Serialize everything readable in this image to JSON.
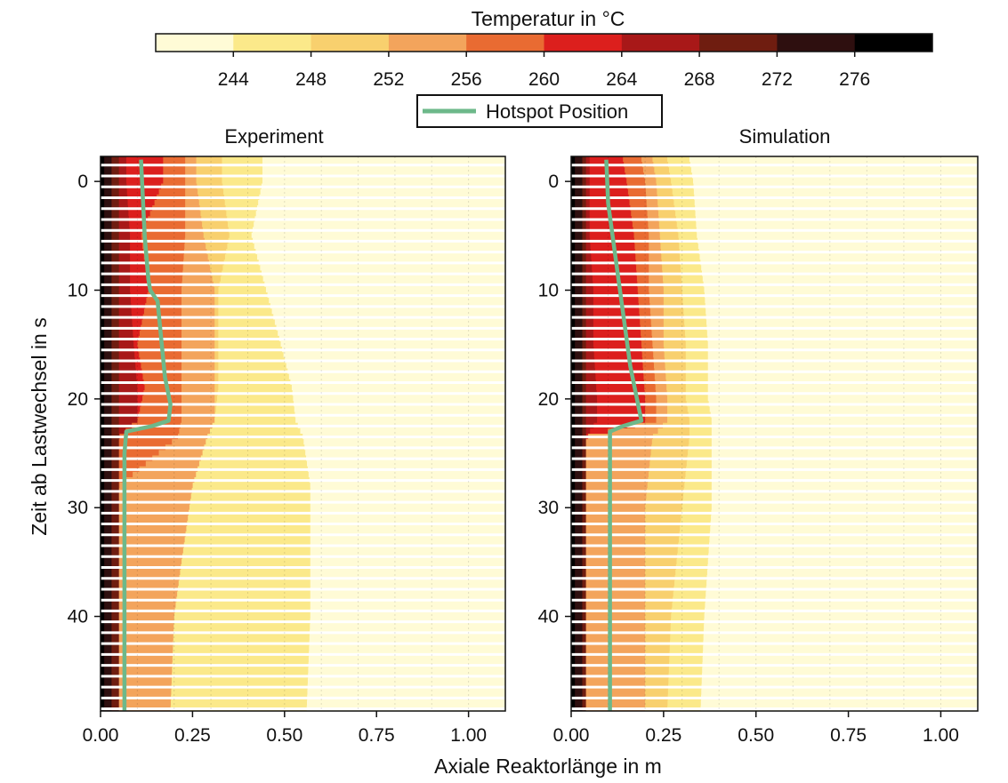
{
  "figure": {
    "colorbar_title": "Temperatur  in °C",
    "legend_label": "Hotspot Position",
    "xlabel": "Axiale Reaktorlänge in m",
    "ylabel": "Zeit ab Lastwechsel in s"
  },
  "colors": {
    "hotspot_line": "#6db88a",
    "stripe": "#ffffff"
  },
  "chart_data": [
    {
      "type": "heatmap",
      "title": "Experiment",
      "x_range": [
        0.0,
        1.1
      ],
      "y_range": [
        -2.3,
        48.7
      ],
      "y_inverted": true,
      "x_ticks": [
        0.0,
        0.25,
        0.5,
        0.75,
        1.0
      ],
      "x_tick_labels": [
        "0.00",
        "0.25",
        "0.50",
        "0.75",
        "1.00"
      ],
      "y_ticks": [
        0,
        10,
        20,
        30,
        40
      ],
      "y_tick_labels": [
        "0",
        "10",
        "20",
        "30",
        "40"
      ],
      "contour_profile": [
        {
          "t": -2,
          "x": [
            0.01,
            0.03,
            0.05,
            0.07,
            0.17,
            0.23,
            0.26,
            0.33,
            0.44,
            0.65,
            1.1
          ]
        },
        {
          "t": 0,
          "x": [
            0.01,
            0.03,
            0.05,
            0.07,
            0.17,
            0.23,
            0.26,
            0.33,
            0.44,
            0.66,
            1.1
          ]
        },
        {
          "t": 5,
          "x": [
            0.01,
            0.03,
            0.05,
            0.08,
            0.11,
            0.23,
            0.28,
            0.35,
            0.41,
            0.62,
            1.1
          ]
        },
        {
          "t": 10,
          "x": [
            0.01,
            0.03,
            0.05,
            0.08,
            0.13,
            0.22,
            0.31,
            0.32,
            0.45,
            0.68,
            1.1
          ]
        },
        {
          "t": 15,
          "x": [
            0.01,
            0.03,
            0.05,
            0.09,
            0.1,
            0.22,
            0.31,
            0.32,
            0.49,
            0.74,
            1.1
          ]
        },
        {
          "t": 19,
          "x": [
            0.01,
            0.03,
            0.05,
            0.1,
            0.12,
            0.22,
            0.31,
            0.32,
            0.52,
            0.77,
            1.1
          ]
        },
        {
          "t": 22,
          "x": [
            0.01,
            0.03,
            0.05,
            0.1,
            0.1,
            0.22,
            0.31,
            0.31,
            0.53,
            0.78,
            1.1
          ]
        },
        {
          "t": 23.5,
          "x": [
            0.01,
            0.03,
            0.05,
            0.05,
            0.05,
            0.21,
            0.29,
            0.29,
            0.55,
            0.78,
            1.1
          ]
        },
        {
          "t": 28,
          "x": [
            0.01,
            0.03,
            0.05,
            0.05,
            0.05,
            0.05,
            0.25,
            0.25,
            0.57,
            0.79,
            1.1
          ]
        },
        {
          "t": 35,
          "x": [
            0.01,
            0.03,
            0.05,
            0.05,
            0.05,
            0.05,
            0.22,
            0.22,
            0.57,
            0.8,
            1.1
          ]
        },
        {
          "t": 40,
          "x": [
            0.01,
            0.03,
            0.05,
            0.05,
            0.05,
            0.05,
            0.2,
            0.2,
            0.57,
            0.79,
            1.1
          ]
        },
        {
          "t": 48.7,
          "x": [
            0.01,
            0.03,
            0.05,
            0.05,
            0.05,
            0.05,
            0.19,
            0.19,
            0.56,
            0.78,
            1.1
          ]
        }
      ],
      "hotspot_position": [
        {
          "t": -2,
          "x": 0.11
        },
        {
          "t": 5,
          "x": 0.12
        },
        {
          "t": 9,
          "x": 0.13
        },
        {
          "t": 10,
          "x": 0.135
        },
        {
          "t": 11,
          "x": 0.155
        },
        {
          "t": 18,
          "x": 0.175
        },
        {
          "t": 20.5,
          "x": 0.19
        },
        {
          "t": 22,
          "x": 0.185
        },
        {
          "t": 22.5,
          "x": 0.14
        },
        {
          "t": 23,
          "x": 0.07
        },
        {
          "t": 25,
          "x": 0.065
        },
        {
          "t": 48.7,
          "x": 0.065
        }
      ]
    },
    {
      "type": "heatmap",
      "title": "Simulation",
      "x_range": [
        0.0,
        1.1
      ],
      "y_range": [
        -2.3,
        48.7
      ],
      "y_inverted": true,
      "x_ticks": [
        0.0,
        0.25,
        0.5,
        0.75,
        1.0
      ],
      "x_tick_labels": [
        "0.00",
        "0.25",
        "0.50",
        "0.75",
        "1.00"
      ],
      "y_ticks": [
        0,
        10,
        20,
        30,
        40
      ],
      "y_tick_labels": [
        "0",
        "10",
        "20",
        "30",
        "40"
      ],
      "contour_profile": [
        {
          "t": -2,
          "x": [
            0.01,
            0.03,
            0.04,
            0.05,
            0.14,
            0.19,
            0.22,
            0.26,
            0.32,
            0.48,
            1.1
          ]
        },
        {
          "t": 0,
          "x": [
            0.01,
            0.03,
            0.04,
            0.05,
            0.15,
            0.2,
            0.23,
            0.27,
            0.33,
            0.49,
            1.1
          ]
        },
        {
          "t": 5,
          "x": [
            0.01,
            0.03,
            0.04,
            0.05,
            0.17,
            0.21,
            0.24,
            0.29,
            0.34,
            0.5,
            1.1
          ]
        },
        {
          "t": 10,
          "x": [
            0.01,
            0.03,
            0.04,
            0.06,
            0.18,
            0.21,
            0.25,
            0.3,
            0.36,
            0.5,
            1.1
          ]
        },
        {
          "t": 15,
          "x": [
            0.01,
            0.03,
            0.04,
            0.06,
            0.19,
            0.22,
            0.25,
            0.31,
            0.37,
            0.51,
            1.1
          ]
        },
        {
          "t": 20,
          "x": [
            0.01,
            0.03,
            0.04,
            0.07,
            0.2,
            0.23,
            0.26,
            0.31,
            0.37,
            0.52,
            1.1
          ]
        },
        {
          "t": 22,
          "x": [
            0.01,
            0.03,
            0.04,
            0.07,
            0.2,
            0.23,
            0.26,
            0.32,
            0.38,
            0.52,
            1.1
          ]
        },
        {
          "t": 23.5,
          "x": [
            0.01,
            0.03,
            0.04,
            0.04,
            0.04,
            0.04,
            0.22,
            0.32,
            0.38,
            0.53,
            1.1
          ]
        },
        {
          "t": 30,
          "x": [
            0.01,
            0.03,
            0.04,
            0.04,
            0.04,
            0.04,
            0.2,
            0.3,
            0.38,
            0.54,
            1.1
          ]
        },
        {
          "t": 40,
          "x": [
            0.01,
            0.03,
            0.04,
            0.04,
            0.04,
            0.04,
            0.2,
            0.27,
            0.36,
            0.55,
            1.1
          ]
        },
        {
          "t": 48.7,
          "x": [
            0.01,
            0.03,
            0.04,
            0.04,
            0.04,
            0.04,
            0.2,
            0.26,
            0.35,
            0.56,
            1.1
          ]
        }
      ],
      "hotspot_position": [
        {
          "t": -2,
          "x": 0.095
        },
        {
          "t": 2,
          "x": 0.1
        },
        {
          "t": 7,
          "x": 0.12
        },
        {
          "t": 12,
          "x": 0.14
        },
        {
          "t": 17,
          "x": 0.16
        },
        {
          "t": 22,
          "x": 0.19
        },
        {
          "t": 22.5,
          "x": 0.14
        },
        {
          "t": 23,
          "x": 0.105
        },
        {
          "t": 48.7,
          "x": 0.105
        }
      ]
    }
  ],
  "colorbar": {
    "ticks": [
      "244",
      "248",
      "252",
      "256",
      "260",
      "264",
      "268",
      "272",
      "276"
    ],
    "bins": [
      {
        "range": "<244",
        "color": "#fffbd6"
      },
      {
        "range": "244–248",
        "color": "#fbe98a"
      },
      {
        "range": "248–252",
        "color": "#f8d06e"
      },
      {
        "range": "252–256",
        "color": "#f3a45c"
      },
      {
        "range": "256–260",
        "color": "#e96b32"
      },
      {
        "range": "260–264",
        "color": "#dc1f1d"
      },
      {
        "range": "264–268",
        "color": "#a81818"
      },
      {
        "range": "268–272",
        "color": "#6f1d10"
      },
      {
        "range": "272–276",
        "color": "#2e0f0f"
      },
      {
        "range": ">276",
        "color": "#000000"
      }
    ]
  }
}
